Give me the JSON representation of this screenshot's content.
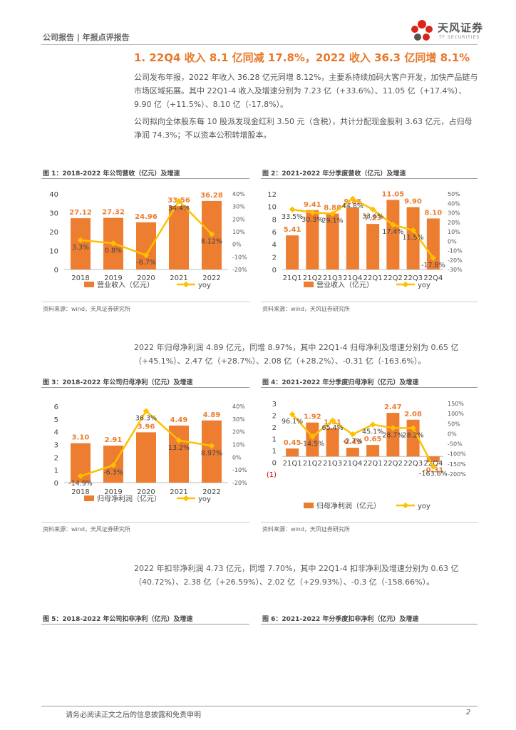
{
  "header": {
    "left_text": "公司报告 | 年报点评报告"
  },
  "logo": {
    "cn": "天风证券",
    "en": "TF SECURITIES",
    "accent": "#d9261c"
  },
  "section": {
    "title": "1. 22Q4 收入 8.1 亿同减 17.8%，2022 收入 36.3 亿同增 8.1%"
  },
  "paragraphs": {
    "p1": "公司发布年报，2022 年收入 36.28 亿元同增 8.12%，主要系持续加码大客户开发，加快产品链与市场区域拓展。其中 22Q1-4 收入及增速分别为 7.23 亿（+33.6%）、11.05 亿（+17.4%）、9.90 亿（+11.5%）、8.10 亿（-17.8%）。",
    "p2": "公司拟向全体股东每 10 股派发现金红利 3.50 元（含税），共计分配现金股利 3.63 亿元，占归母净润 74.3%；不以资本公积转增股本。",
    "p3": "2022 年归母净利润 4.89 亿元，同增 8.97%，其中 22Q1-4 归母净利及增速分别为 0.65 亿（+45.1%）、2.47 亿（+28.7%）、2.08 亿（+28.2%）、-0.31 亿（-163.6%）。",
    "p4": "2022 年扣非净利润 4.73 亿元，同增 7.70%，其中 22Q1-4 扣非净利及增速分别为 0.63 亿（40.72%）、2.38 亿（+26.59%）、2.02 亿（+29.93%）、-0.3 亿（-158.66%）。"
  },
  "figures": {
    "fig1": "图 1：2018-2022 年公司营收（亿元）及增速",
    "fig2": "图 2：2021-2022 年分季度营收（亿元）及增速",
    "fig3": "图 3：2018-2022 年公司归母净利（亿元）及增速",
    "fig4": "图 4：2021-2022 年分季度归母净利（亿元）及增速",
    "fig5": "图 5：2018-2022 年公司扣非净利（亿元）及增速",
    "fig6": "图 6：2021-2022 年分季度扣非净利（亿元）及增速"
  },
  "source_text": "资料来源：wind，天风证券研究所",
  "footer": {
    "disclaimer": "请务必阅读正文之后的信息披露和免责申明",
    "page": "2"
  },
  "colors": {
    "bar": "#ed7d31",
    "line": "#ffc000",
    "title": "#e8782a"
  },
  "chart_data": [
    {
      "id": "c1",
      "type": "bar",
      "title": "图 1：2018-2022 年公司营收（亿元）及增速",
      "categories": [
        "2018",
        "2019",
        "2020",
        "2021",
        "2022"
      ],
      "series": [
        {
          "name": "营业收入（亿元）",
          "axis": "left",
          "values": [
            27.12,
            27.32,
            24.96,
            33.56,
            36.28
          ],
          "labels": [
            "27.12",
            "27.32",
            "24.96",
            "33.56",
            "36.28"
          ]
        },
        {
          "name": "yoy",
          "axis": "right",
          "type": "line",
          "values": [
            3.3,
            0.8,
            -8.7,
            34.4,
            8.12
          ],
          "labels": [
            "3.3%",
            "0.8%",
            "-8.7%",
            "34.4%",
            "8.12%"
          ]
        }
      ],
      "ylim_left": [
        0,
        40
      ],
      "yticks_left": [
        "0",
        "10",
        "20",
        "30",
        "40"
      ],
      "ylim_right": [
        -20,
        40
      ],
      "yticks_right": [
        "-20%",
        "-10%",
        "0%",
        "10%",
        "20%",
        "30%",
        "40%"
      ]
    },
    {
      "id": "c2",
      "type": "bar",
      "title": "图 2：2021-2022 年分季度营收（亿元）及增速",
      "categories": [
        "21Q1",
        "21Q2",
        "21Q3",
        "21Q4",
        "22Q1",
        "22Q2",
        "22Q3",
        "22Q4"
      ],
      "series": [
        {
          "name": "营业收入（亿元）",
          "axis": "left",
          "values": [
            5.41,
            9.41,
            8.88,
            9.85,
            7.23,
            11.05,
            9.9,
            8.1
          ],
          "labels": [
            "5.41",
            "9.41",
            "8.88",
            "9.85",
            "7.23",
            "11.05",
            "9.90",
            "8.10"
          ]
        },
        {
          "name": "yoy",
          "axis": "right",
          "type": "line",
          "values": [
            33.5,
            30.3,
            29.1,
            44.8,
            33.6,
            17.4,
            11.5,
            -17.8
          ],
          "labels": [
            "33.5%",
            "30.3%",
            "29.1%",
            "44.8%",
            "33.6%",
            "17.4%",
            "11.5%",
            "-17.8%"
          ]
        }
      ],
      "ylim_left": [
        0,
        12
      ],
      "yticks_left": [
        "0",
        "2",
        "4",
        "6",
        "8",
        "10",
        "12"
      ],
      "ylim_right": [
        -30,
        50
      ],
      "yticks_right": [
        "-30%",
        "-20%",
        "-10%",
        "0%",
        "10%",
        "20%",
        "30%",
        "40%",
        "50%"
      ]
    },
    {
      "id": "c3",
      "type": "bar",
      "title": "图 3：2018-2022 年公司归母净利（亿元）及增速",
      "categories": [
        "2018",
        "2019",
        "2020",
        "2021",
        "2022"
      ],
      "series": [
        {
          "name": "归母净利润（亿元）",
          "axis": "left",
          "values": [
            3.1,
            2.91,
            3.96,
            4.49,
            4.89
          ],
          "labels": [
            "3.10",
            "2.91",
            "3.96",
            "4.49",
            "4.89"
          ]
        },
        {
          "name": "yoy",
          "axis": "right",
          "type": "line",
          "values": [
            -14.9,
            -6.3,
            36.3,
            13.2,
            8.97
          ],
          "labels": [
            "-14.9%",
            "-6.3%",
            "36.3%",
            "13.2%",
            "8.97%"
          ]
        }
      ],
      "ylim_left": [
        0,
        6
      ],
      "yticks_left": [
        "0",
        "1",
        "2",
        "3",
        "4",
        "5",
        "6"
      ],
      "ylim_right": [
        -20,
        40
      ],
      "yticks_right": [
        "-20%",
        "-10%",
        "0%",
        "10%",
        "20%",
        "30%",
        "40%"
      ]
    },
    {
      "id": "c4",
      "type": "bar",
      "title": "图 4：2021-2022 年分季度归母净利（亿元）及增速",
      "categories": [
        "21Q1",
        "21Q2",
        "21Q3",
        "21Q4",
        "22Q1",
        "22Q2",
        "22Q3",
        "22Q4"
      ],
      "series": [
        {
          "name": "归母净利润（亿元）",
          "axis": "left",
          "values": [
            0.45,
            1.92,
            1.61,
            0.49,
            0.65,
            2.47,
            2.08,
            -0.31
          ],
          "labels": [
            "0.45",
            "1.92",
            "1.61",
            "0.49",
            "0.65",
            "2.47",
            "2.08",
            "-0.31"
          ]
        },
        {
          "name": "yoy",
          "axis": "right",
          "type": "line",
          "values": [
            96.1,
            -14.5,
            65.4,
            -2.7,
            45.1,
            28.7,
            28.2,
            -163.6
          ],
          "labels": [
            "96.1%",
            "-14.5%",
            "65.4%",
            "-2.7%",
            "45.1%",
            "28.7%",
            "28.2%",
            "-163.6%"
          ]
        }
      ],
      "ylim_left": [
        -1,
        3
      ],
      "yticks_left": [
        "(1)",
        "0",
        "1",
        "1",
        "2",
        "2",
        "3"
      ],
      "ylim_right": [
        -200,
        150
      ],
      "yticks_right": [
        "-200%",
        "-150%",
        "-100%",
        "-50%",
        "0%",
        "50%",
        "100%",
        "150%"
      ]
    }
  ]
}
